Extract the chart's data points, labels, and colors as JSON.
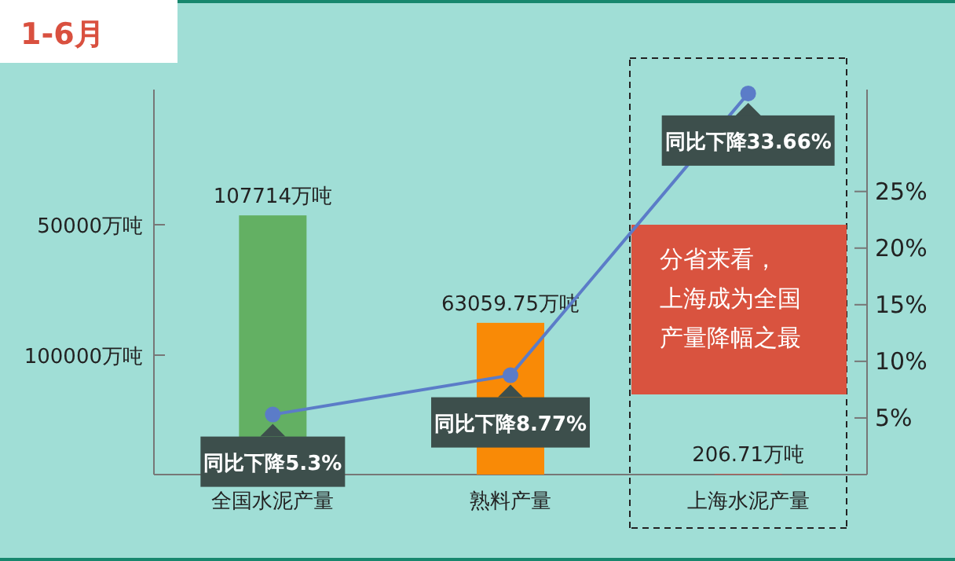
{
  "chart_data": {
    "type": "bar",
    "title": "1-6月",
    "categories": [
      "全国水泥产量",
      "熟料产量",
      "上海水泥产量"
    ],
    "series": [
      {
        "colors": [
          "#63b063",
          "#f98a06",
          "#dc5544"
        ],
        "values": [
          107714,
          63059.75,
          206.71
        ],
        "value_labels": [
          "107714万吨",
          "63059.75万吨",
          "206.71万吨"
        ]
      },
      {
        "type": "line",
        "axis": "y2",
        "color": "#5b7cc8",
        "marker": "circle",
        "values": [
          5.3,
          8.77,
          33.66
        ],
        "value_labels": [
          "同比下降5.3%",
          "同比下降8.77%",
          "同比下降33.66%"
        ]
      }
    ],
    "ylim": [
      0,
      160000
    ],
    "y2lim": [
      0,
      34
    ],
    "y2ticks": [
      {
        "value": 5,
        "label": "5%"
      },
      {
        "value": 10,
        "label": "10%"
      },
      {
        "value": 15,
        "label": "15%"
      },
      {
        "value": 20,
        "label": "20%"
      },
      {
        "value": 25,
        "label": "25%"
      }
    ],
    "annotations": [
      "50000万吨",
      "100000万吨",
      "分省来看，上海成为全国产量降幅之最"
    ],
    "grid": false
  }
}
